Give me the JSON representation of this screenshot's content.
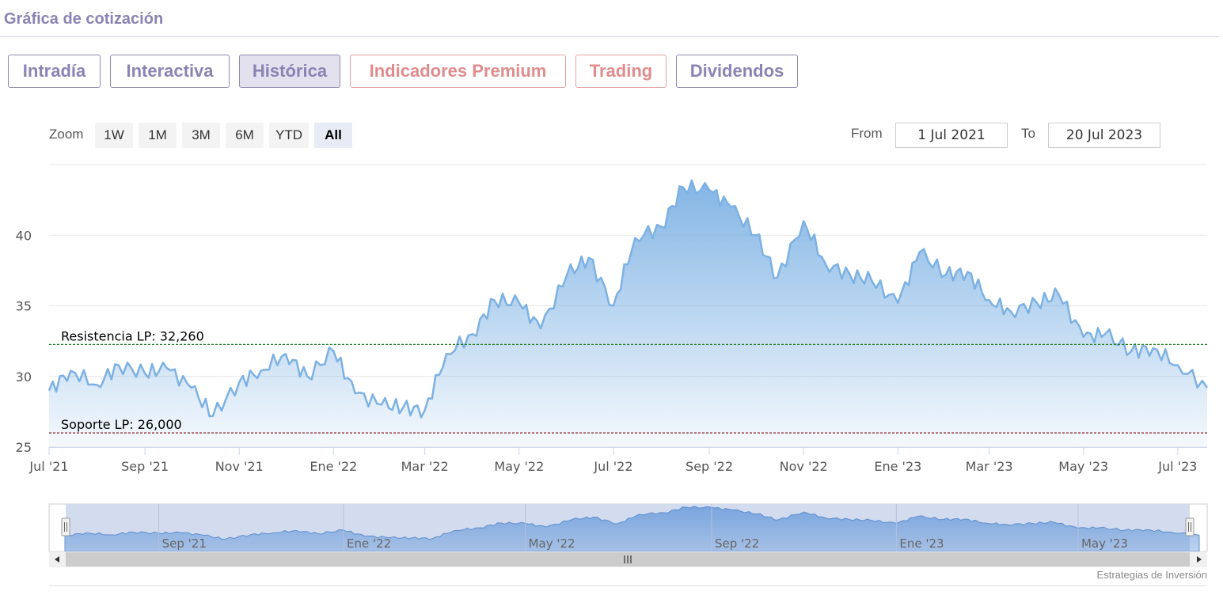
{
  "header": {
    "title": "Gráfica de cotización"
  },
  "tabs": [
    {
      "label": "Intradía",
      "active": false,
      "premium": false
    },
    {
      "label": "Interactiva",
      "active": false,
      "premium": false
    },
    {
      "label": "Histórica",
      "active": true,
      "premium": false
    },
    {
      "label": "Indicadores Premium",
      "active": false,
      "premium": true
    },
    {
      "label": "Trading",
      "active": false,
      "premium": true
    },
    {
      "label": "Dividendos",
      "active": false,
      "premium": false
    }
  ],
  "zoom": {
    "label": "Zoom",
    "buttons": [
      "1W",
      "1M",
      "3M",
      "6M",
      "YTD",
      "All"
    ],
    "selected": "All"
  },
  "range": {
    "from_label": "From",
    "from_value": "1 Jul 2021",
    "to_label": "To",
    "to_value": "20 Jul 2023"
  },
  "credit": "Estrategias de Inversión",
  "colors": {
    "line": "#7cb1e3",
    "resistance": "#1e7a1e",
    "support": "#8b1a1a",
    "tab_text": "#8c83b5",
    "premium_text": "#e08c8c"
  },
  "chart_data": {
    "type": "area",
    "title": "",
    "xlabel": "",
    "ylabel": "",
    "ylim": [
      25,
      45
    ],
    "yticks": [
      25,
      30,
      35,
      40
    ],
    "xticks": [
      "Jul '21",
      "Sep '21",
      "Nov '21",
      "Ene '22",
      "Mar '22",
      "May '22",
      "Jul '22",
      "Sep '22",
      "Nov '22",
      "Ene '23",
      "Mar '23",
      "May '23",
      "Jul '23"
    ],
    "x": [
      "2021-07-01",
      "2021-07-15",
      "2021-08-01",
      "2021-08-15",
      "2021-09-01",
      "2021-09-15",
      "2021-10-01",
      "2021-10-15",
      "2021-11-01",
      "2021-11-15",
      "2021-12-01",
      "2021-12-15",
      "2022-01-01",
      "2022-01-15",
      "2022-02-01",
      "2022-02-15",
      "2022-03-01",
      "2022-03-15",
      "2022-04-01",
      "2022-04-15",
      "2022-05-01",
      "2022-05-15",
      "2022-06-01",
      "2022-06-15",
      "2022-07-01",
      "2022-07-15",
      "2022-08-01",
      "2022-08-15",
      "2022-09-01",
      "2022-09-15",
      "2022-10-01",
      "2022-10-15",
      "2022-11-01",
      "2022-11-15",
      "2022-12-01",
      "2022-12-15",
      "2023-01-01",
      "2023-01-15",
      "2023-02-01",
      "2023-02-15",
      "2023-03-01",
      "2023-03-15",
      "2023-04-01",
      "2023-04-15",
      "2023-05-01",
      "2023-05-15",
      "2023-06-01",
      "2023-06-15",
      "2023-07-01",
      "2023-07-20"
    ],
    "series": [
      {
        "values": [
          29.0,
          30.4,
          29.4,
          30.8,
          30.2,
          30.6,
          29.2,
          27.2,
          29.6,
          30.4,
          31.6,
          30.0,
          31.8,
          28.8,
          28.0,
          27.8,
          27.6,
          31.6,
          33.0,
          35.4,
          35.2,
          33.4,
          37.2,
          38.4,
          35.0,
          39.8,
          40.6,
          43.4,
          43.2,
          42.0,
          40.0,
          37.0,
          41.0,
          38.0,
          37.2,
          36.8,
          35.2,
          38.8,
          37.2,
          37.4,
          35.4,
          34.6,
          35.2,
          35.8,
          32.8,
          33.0,
          31.8,
          32.0,
          30.8,
          29.2
        ]
      }
    ],
    "annotations": [
      {
        "label": "Resistencia LP: 32,260",
        "value": 32.26,
        "color": "#1e7a1e"
      },
      {
        "label": "Soporte LP: 26,000",
        "value": 26.0,
        "color": "#8b1a1a"
      }
    ],
    "navigator": {
      "xticks": [
        "Sep '21",
        "Ene '22",
        "May '22",
        "Sep '22",
        "Ene '23",
        "May '23"
      ]
    },
    "grid": true,
    "legend": "none"
  }
}
